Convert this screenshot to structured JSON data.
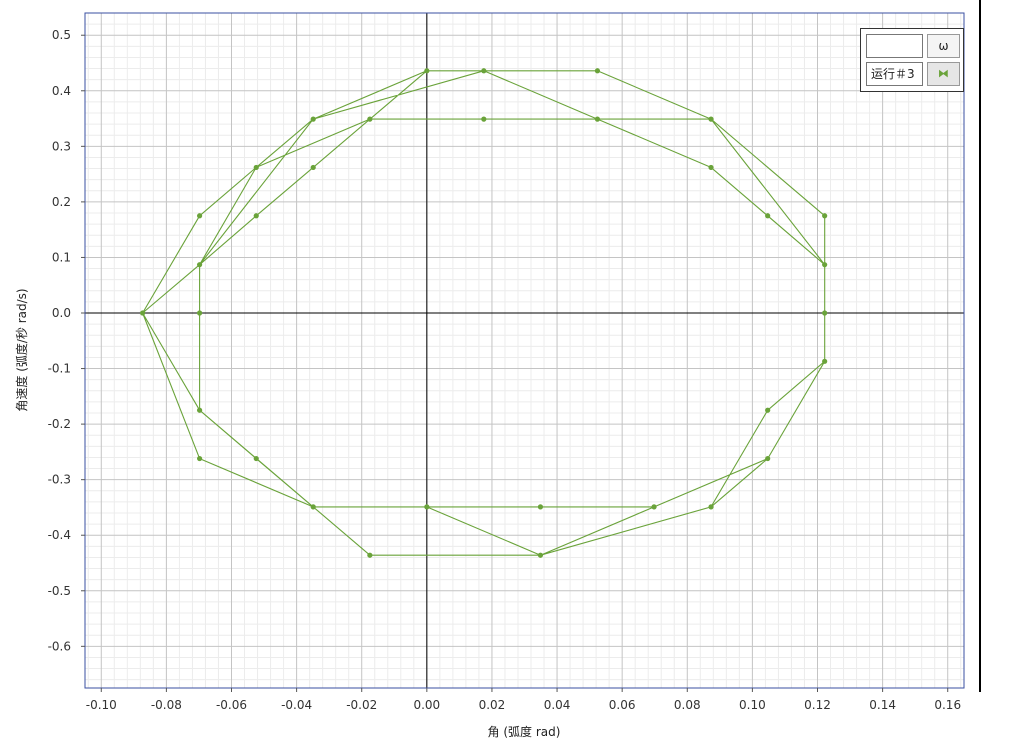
{
  "chart_data": {
    "type": "line",
    "xlabel": "角 (弧度 rad)",
    "ylabel": "角速度 (弧度/秒 rad/s)",
    "xlim": [
      -0.105,
      0.165
    ],
    "ylim": [
      -0.675,
      0.54
    ],
    "xticks": [
      -0.1,
      -0.08,
      -0.06,
      -0.04,
      -0.02,
      0.0,
      0.02,
      0.04,
      0.06,
      0.08,
      0.1,
      0.12,
      0.14,
      0.16
    ],
    "xtick_labels": [
      "-0.10",
      "-0.08",
      "-0.06",
      "-0.04",
      "-0.02",
      "0.00",
      "0.02",
      "0.04",
      "0.06",
      "0.08",
      "0.10",
      "0.12",
      "0.14",
      "0.16"
    ],
    "yticks": [
      0.5,
      0.4,
      0.3,
      0.2,
      0.1,
      0.0,
      -0.1,
      -0.2,
      -0.3,
      -0.4,
      -0.5,
      -0.6
    ],
    "ytick_labels": [
      "0.5",
      "0.4",
      "0.3",
      "0.2",
      "0.1",
      "0.0",
      "-0.1",
      "-0.2",
      "-0.3",
      "-0.4",
      "-0.5",
      "-0.6"
    ],
    "grid": true,
    "legend_position": "top-right",
    "color": "#6aa33a",
    "series": [
      {
        "name": "运行＃3",
        "points": [
          [
            0.0,
            0.436
          ],
          [
            0.0175,
            0.436
          ],
          [
            0.0524,
            0.436
          ],
          [
            0.0873,
            0.349
          ],
          [
            0.1222,
            0.175
          ],
          [
            0.1222,
            0.087
          ],
          [
            0.1222,
            0.0
          ],
          [
            0.1222,
            -0.087
          ],
          [
            0.1047,
            -0.262
          ],
          [
            0.0873,
            -0.349
          ],
          [
            0.0349,
            -0.436
          ],
          [
            0.0,
            -0.349
          ],
          [
            -0.0349,
            -0.349
          ],
          [
            -0.0698,
            -0.175
          ],
          [
            -0.0698,
            0.0
          ],
          [
            -0.0698,
            0.087
          ],
          [
            -0.0524,
            0.175
          ],
          [
            -0.0349,
            0.262
          ],
          [
            0.0,
            0.436
          ],
          [
            0.0175,
            0.436
          ],
          [
            0.0524,
            0.349
          ],
          [
            0.0873,
            0.262
          ],
          [
            0.1047,
            0.175
          ],
          [
            0.1222,
            0.087
          ],
          [
            0.1222,
            -0.087
          ],
          [
            0.1047,
            -0.262
          ],
          [
            0.0698,
            -0.349
          ],
          [
            0.0349,
            -0.436
          ],
          [
            0.0,
            -0.349
          ],
          [
            -0.0349,
            -0.349
          ],
          [
            -0.0524,
            -0.262
          ],
          [
            -0.0698,
            -0.175
          ],
          [
            -0.0873,
            0.0
          ],
          [
            -0.0698,
            0.175
          ],
          [
            -0.0524,
            0.262
          ],
          [
            -0.0349,
            0.349
          ],
          [
            0.0175,
            0.436
          ],
          [
            0.0524,
            0.349
          ],
          [
            0.0873,
            0.262
          ],
          [
            0.1222,
            0.087
          ],
          [
            0.1222,
            -0.087
          ],
          [
            0.1047,
            -0.175
          ],
          [
            0.0873,
            -0.349
          ],
          [
            0.0349,
            -0.436
          ],
          [
            -0.0175,
            -0.436
          ],
          [
            -0.0349,
            -0.349
          ],
          [
            -0.0698,
            -0.262
          ],
          [
            -0.0873,
            0.0
          ],
          [
            -0.0698,
            0.087
          ],
          [
            -0.0524,
            0.262
          ],
          [
            -0.0175,
            0.349
          ],
          [
            0.0175,
            0.349
          ],
          [
            0.0524,
            0.349
          ],
          [
            0.0873,
            0.349
          ],
          [
            0.1222,
            0.087
          ],
          [
            0.1222,
            -0.087
          ],
          [
            0.1047,
            -0.262
          ],
          [
            0.0698,
            -0.349
          ],
          [
            0.0349,
            -0.349
          ],
          [
            0.0,
            -0.349
          ],
          [
            -0.0349,
            -0.349
          ],
          [
            -0.0698,
            -0.175
          ],
          [
            -0.0698,
            0.087
          ],
          [
            -0.0349,
            0.349
          ],
          [
            0.0,
            0.436
          ]
        ]
      }
    ]
  },
  "legend": {
    "header_symbol": "ω",
    "series_label": "运行＃3",
    "series_glyph": "⧓"
  }
}
